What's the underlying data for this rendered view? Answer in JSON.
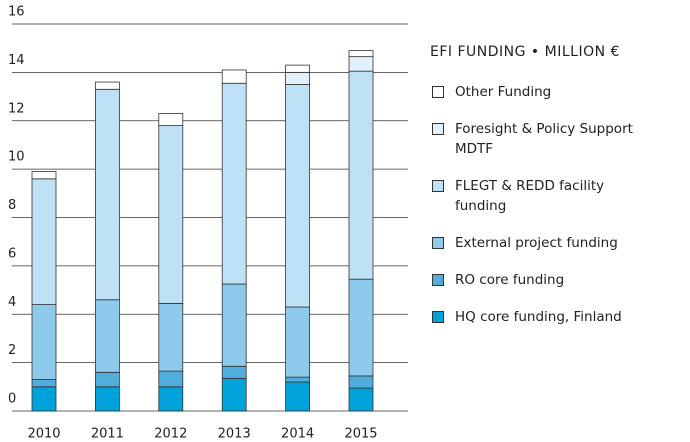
{
  "chart_data": {
    "type": "stacked_bar",
    "title": "EFI FUNDING • MILLION €",
    "categories": [
      "2010",
      "2011",
      "2012",
      "2013",
      "2014",
      "2015"
    ],
    "series": [
      {
        "name": "HQ core funding, Finland",
        "color": "#00a3d9",
        "values": [
          1.0,
          1.0,
          1.0,
          1.35,
          1.2,
          0.95
        ]
      },
      {
        "name": "RO  core funding",
        "color": "#52acdc",
        "values": [
          0.3,
          0.6,
          0.65,
          0.5,
          0.2,
          0.5
        ]
      },
      {
        "name": "External project funding",
        "color": "#8ecaec",
        "values": [
          3.1,
          3.0,
          2.8,
          3.4,
          2.9,
          4.0
        ]
      },
      {
        "name": "FLEGT & REDD facility funding",
        "color": "#bfe1f5",
        "values": [
          5.2,
          8.7,
          7.35,
          8.3,
          9.2,
          8.6
        ]
      },
      {
        "name": "Foresight & Policy Support MDTF",
        "color": "#e0f1fb",
        "values": [
          0,
          0,
          0,
          0,
          0.5,
          0.6
        ]
      },
      {
        "name": "Other Funding",
        "color": "#ffffff",
        "values": [
          0.3,
          0.3,
          0.5,
          0.55,
          0.3,
          0.25
        ]
      }
    ],
    "ylim": [
      0,
      16
    ],
    "yticks": [
      0,
      2,
      4,
      6,
      8,
      10,
      12,
      14,
      16
    ],
    "grid": true
  }
}
